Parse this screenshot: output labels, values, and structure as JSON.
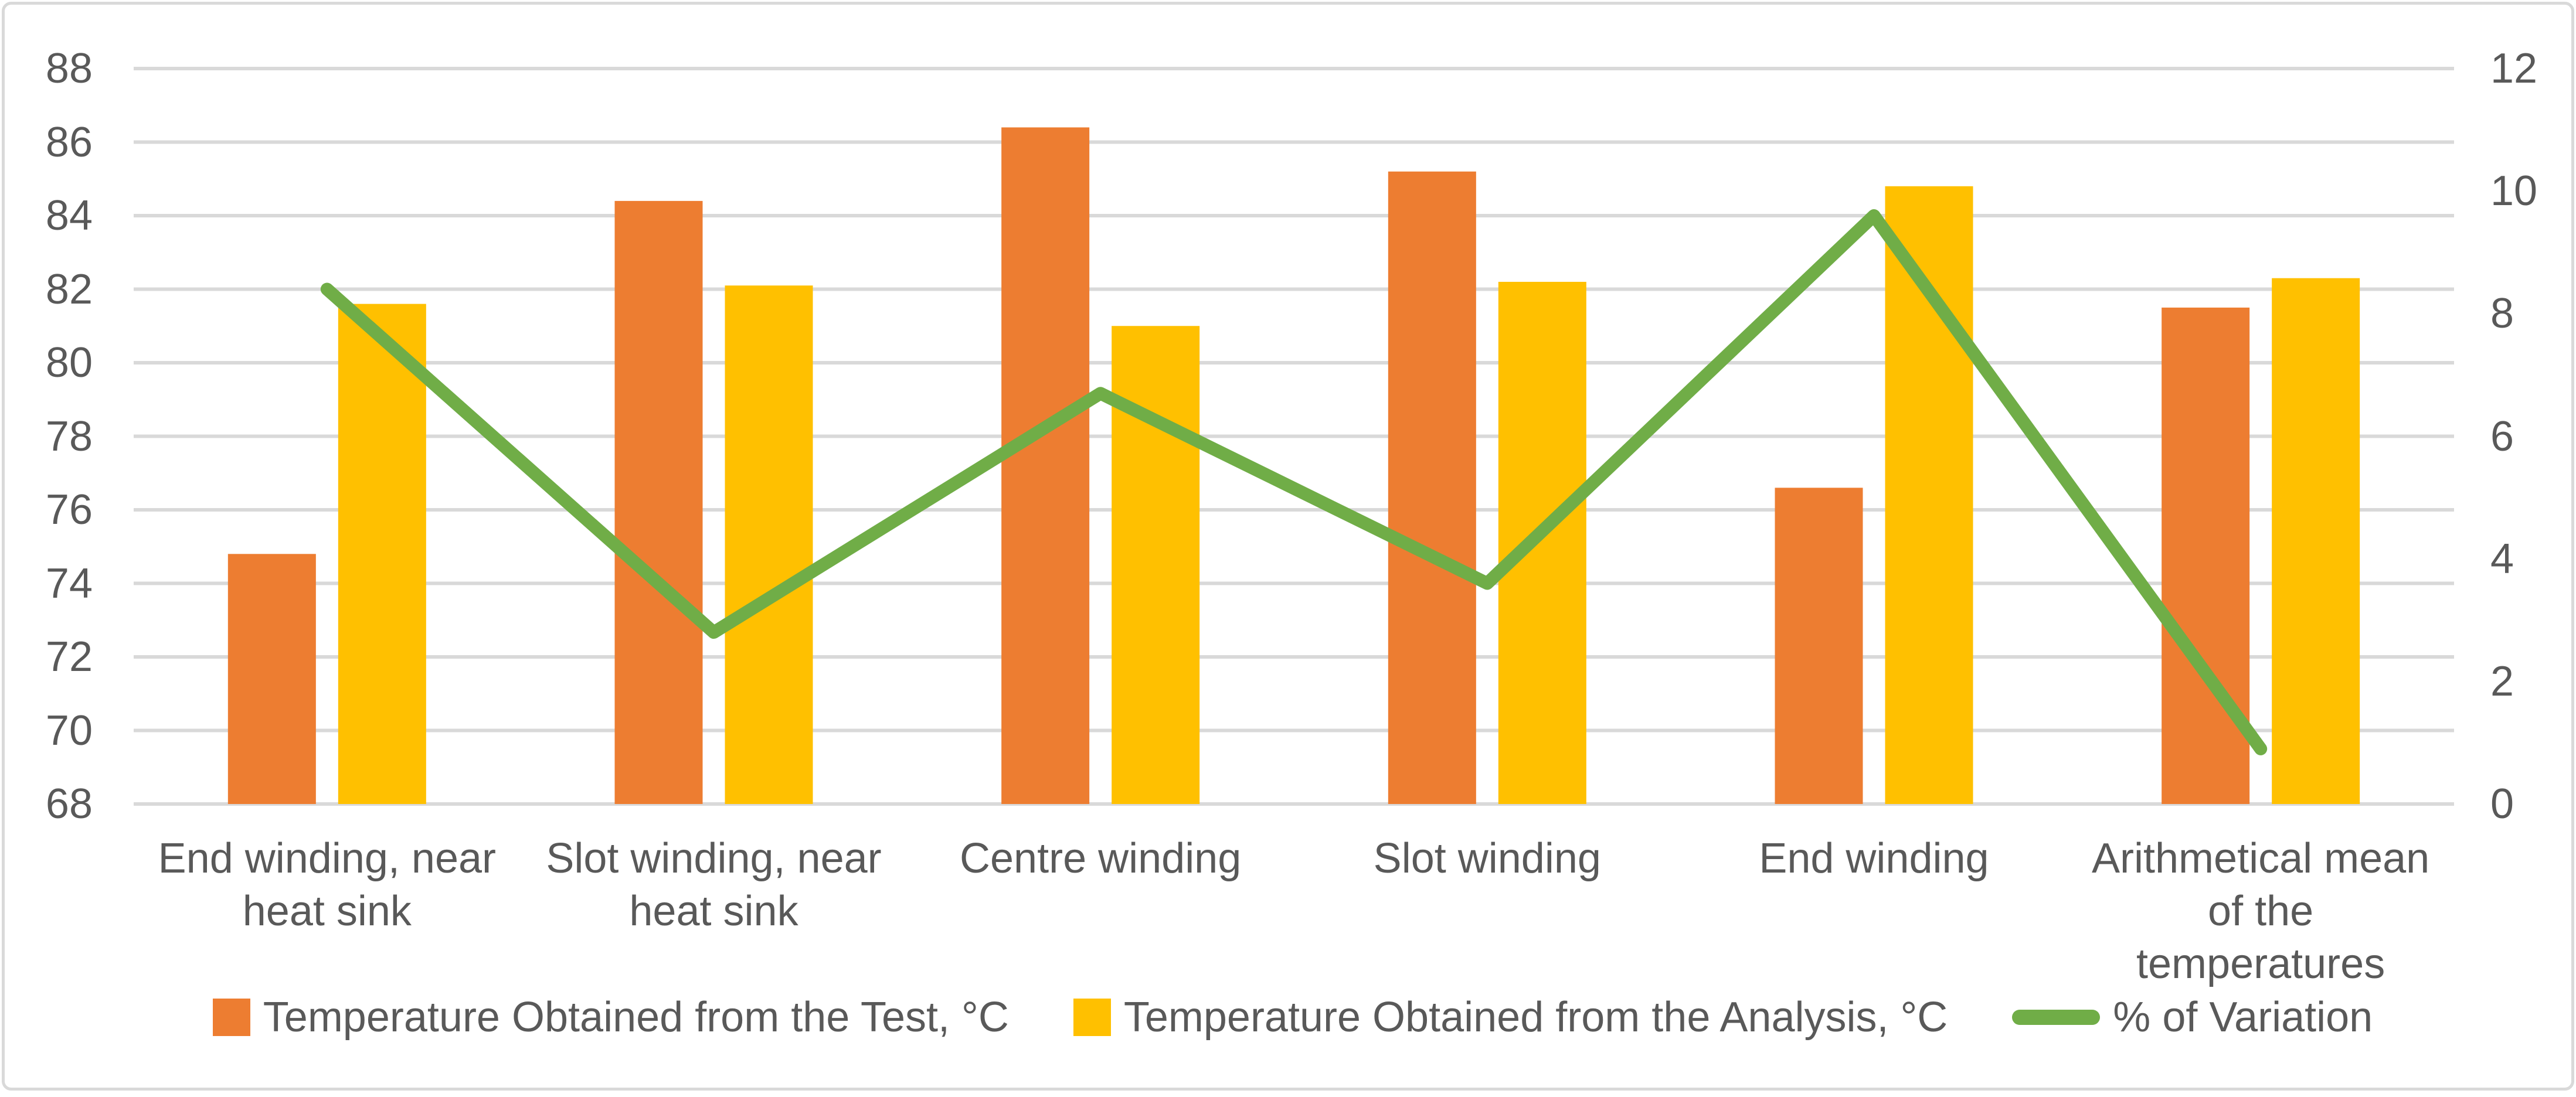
{
  "figure": {
    "background": "#FFFFFF",
    "border_color": "#D9D9D9"
  },
  "chart_data": {
    "type": "combo-bar-line",
    "title": "",
    "categories": [
      "End winding, near heat sink",
      "Slot winding, near heat sink",
      "Centre winding",
      "Slot winding",
      "End winding",
      "Arithmetical mean of the temperatures"
    ],
    "series": [
      {
        "name": "Temperature Obtained from the Test, °C",
        "type": "bar",
        "axis": "left",
        "color": "#ED7D31",
        "values": [
          74.8,
          84.4,
          86.4,
          85.2,
          76.6,
          81.5
        ]
      },
      {
        "name": "Temperature Obtained from the Analysis, °C",
        "type": "bar",
        "axis": "left",
        "color": "#FFC000",
        "values": [
          81.6,
          82.1,
          81.0,
          82.2,
          84.8,
          82.3
        ]
      },
      {
        "name": "% of Variation",
        "type": "line",
        "axis": "right",
        "color": "#70AD47",
        "values": [
          8.4,
          2.8,
          6.7,
          3.6,
          9.6,
          0.9
        ]
      }
    ],
    "left_axis": {
      "min": 68,
      "max": 88,
      "step": 2,
      "ticks": [
        "88",
        "86",
        "84",
        "82",
        "80",
        "78",
        "76",
        "74",
        "72",
        "70",
        "68"
      ]
    },
    "right_axis": {
      "min": 0,
      "max": 12,
      "step": 2,
      "ticks": [
        "12",
        "10",
        "8",
        "6",
        "4",
        "2",
        "0"
      ]
    },
    "grid": true,
    "legend_position": "bottom",
    "colors": {
      "gridline": "#D9D9D9",
      "text": "#595959"
    }
  }
}
